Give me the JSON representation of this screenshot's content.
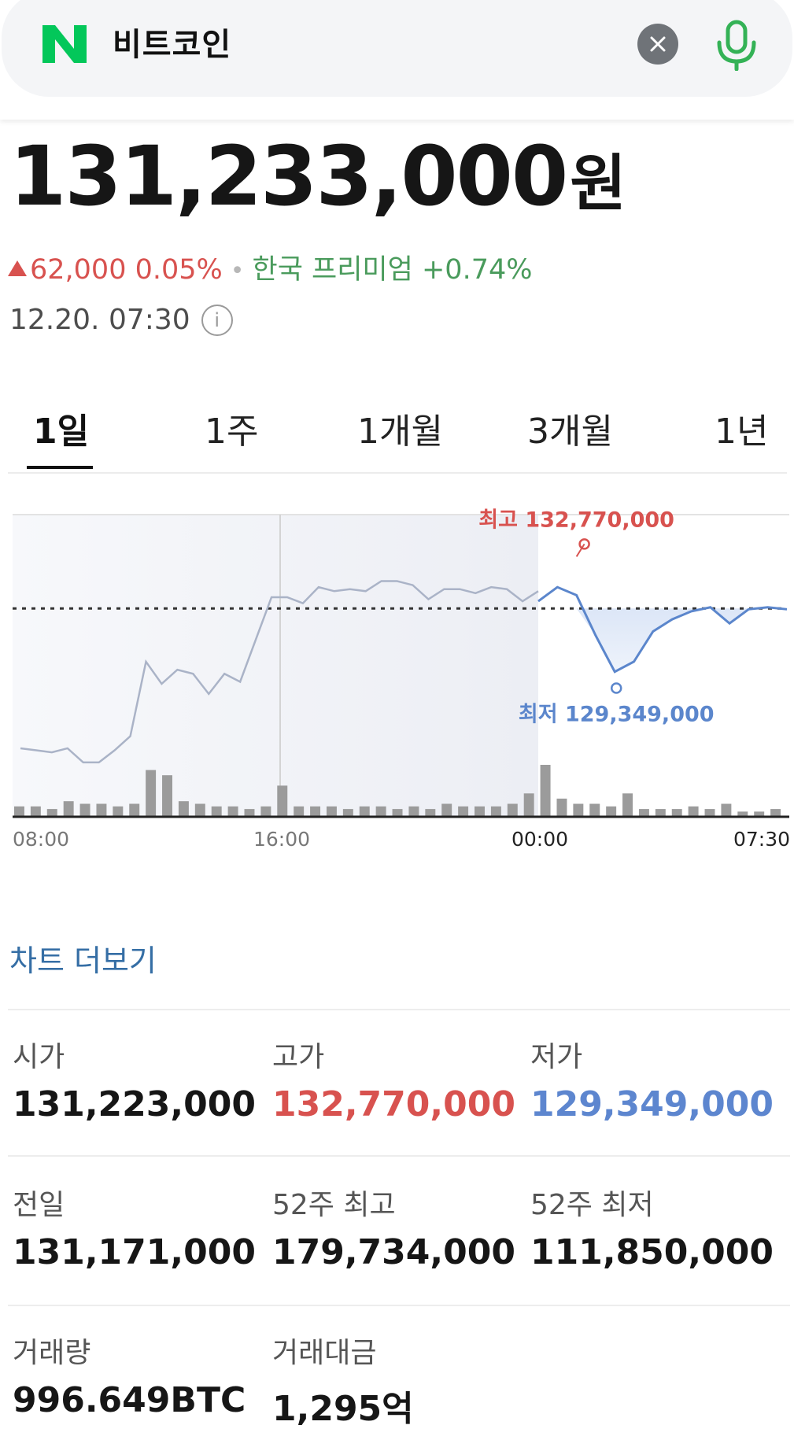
{
  "search": {
    "query": "비트코인",
    "brand_color": "#03c75a"
  },
  "quote": {
    "price": "131,233,000",
    "unit": "원",
    "change": "62,000",
    "change_pct": "0.05%",
    "premium_label": "한국 프리미엄",
    "premium_value": "+0.74%",
    "timestamp": "12.20. 07:30"
  },
  "tabs": [
    {
      "label": "1일",
      "active": true
    },
    {
      "label": "1주",
      "active": false
    },
    {
      "label": "1개월",
      "active": false
    },
    {
      "label": "3개월",
      "active": false
    },
    {
      "label": "1년",
      "active": false
    }
  ],
  "chart_data": {
    "type": "line",
    "x_ticks": [
      "08:00",
      "16:00",
      "00:00",
      "07:30"
    ],
    "baseline": 131171000,
    "high": {
      "label": "최고",
      "value_text": "132,770,000",
      "value": 132770000
    },
    "low": {
      "label": "최저",
      "value_text": "129,349,000",
      "value": 129349000
    },
    "ylim": [
      126000000,
      133500000
    ],
    "series": [
      {
        "values": [
          127700000,
          127650000,
          127600000,
          127700000,
          127350000,
          127350000,
          127650000,
          128000000,
          129850000,
          129300000,
          129650000,
          129550000,
          129050000,
          129550000,
          129350000,
          130400000,
          131450000,
          131450000,
          131300000,
          131700000,
          131600000,
          131650000,
          131600000,
          131850000,
          131850000,
          131750000,
          131400000,
          131650000,
          131650000,
          131550000,
          131700000,
          131650000,
          131350000,
          131600000
        ]
      },
      {
        "values": [
          131350000,
          131700000,
          131500000,
          130500000,
          129600000,
          129850000,
          130600000,
          130900000,
          131100000,
          131200000,
          130800000,
          131150000,
          131200000,
          131150000
        ]
      }
    ],
    "volume": [
      4,
      4,
      3,
      6,
      5,
      5,
      4,
      5,
      18,
      16,
      6,
      5,
      4,
      4,
      3,
      4,
      12,
      4,
      4,
      4,
      3,
      4,
      4,
      3,
      4,
      3,
      5,
      4,
      4,
      4,
      5,
      9,
      20,
      7,
      5,
      5,
      4,
      9,
      3,
      3,
      3,
      4,
      3,
      5,
      2,
      2,
      3
    ],
    "colors": {
      "past": "#aab3c7",
      "current": "#5b86cc",
      "high": "#d8524f",
      "low": "#5b86cc",
      "volume": "#9b9b9b"
    }
  },
  "more_chart": "차트 더보기",
  "stats": [
    {
      "label": "시가",
      "value": "131,223,000",
      "tone": ""
    },
    {
      "label": "고가",
      "value": "132,770,000",
      "tone": "red"
    },
    {
      "label": "저가",
      "value": "129,349,000",
      "tone": "blue"
    },
    {
      "label": "전일",
      "value": "131,171,000",
      "tone": ""
    },
    {
      "label": "52주 최고",
      "value": "179,734,000",
      "tone": ""
    },
    {
      "label": "52주 최저",
      "value": "111,850,000",
      "tone": ""
    },
    {
      "label": "거래량",
      "value": "996.649BTC",
      "tone": ""
    },
    {
      "label": "거래대금",
      "value": "1,295억",
      "tone": ""
    }
  ]
}
